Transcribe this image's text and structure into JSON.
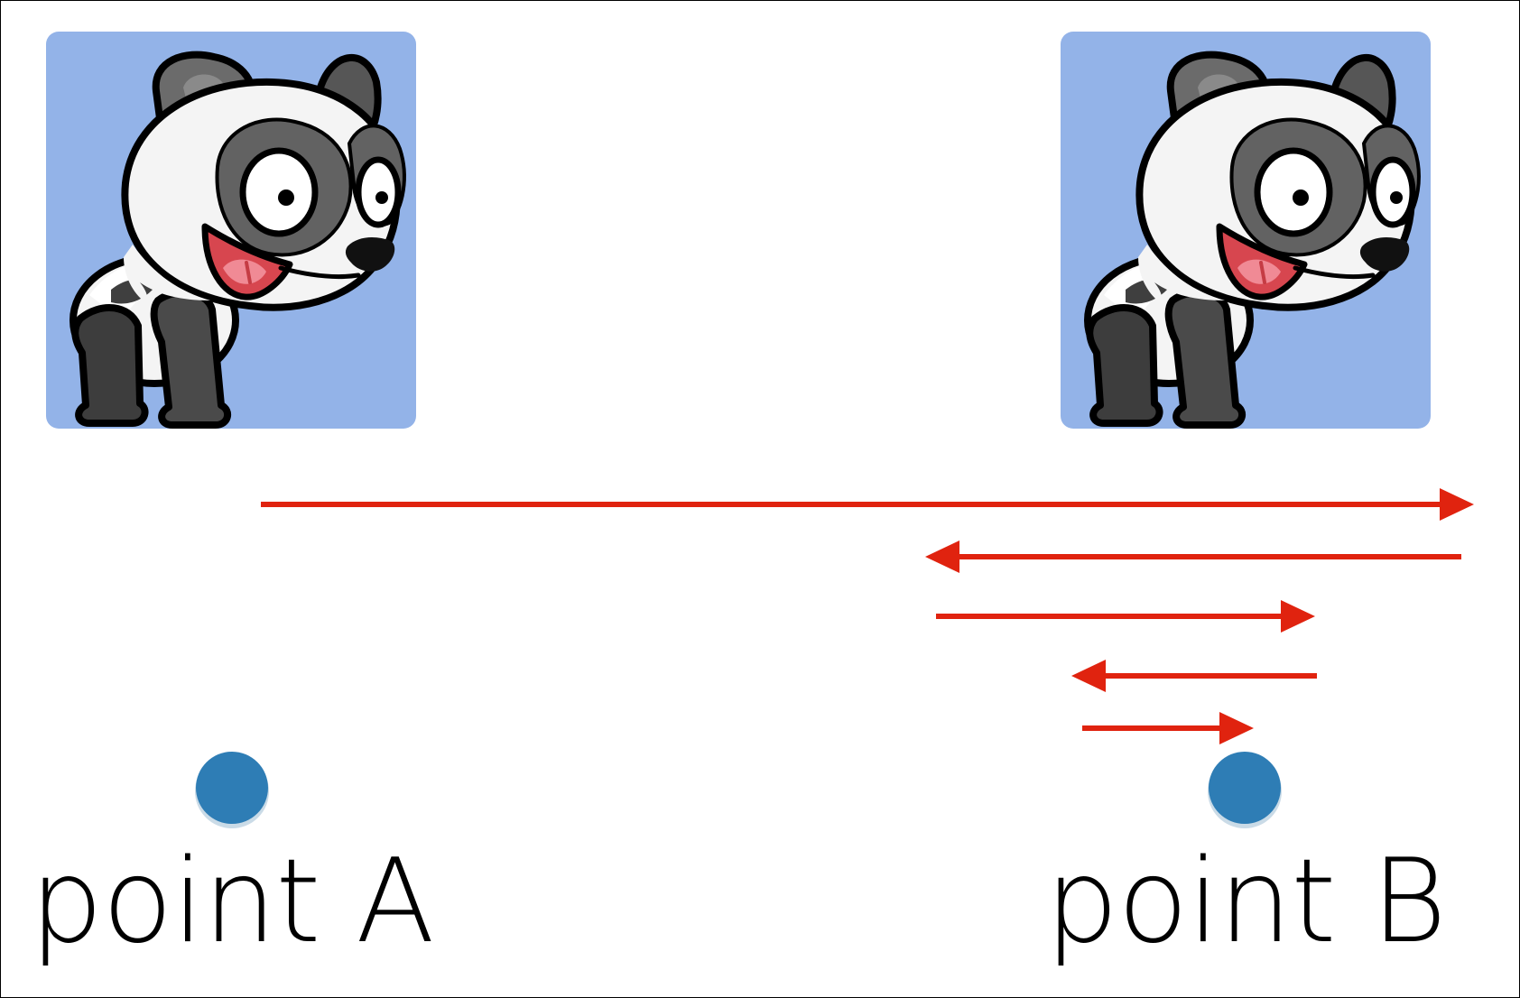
{
  "labels": {
    "point_a": "point A",
    "point_b": "point B"
  },
  "colors": {
    "panel_background": "#93b3e8",
    "arrow": "#e0230f",
    "point": "#2e7db5",
    "panda_black": "#4a4a4a",
    "panda_gray": "#5f5f5f",
    "panda_white": "#f4f4f4",
    "mouth": "#d7464f",
    "tongue": "#f08a95"
  },
  "icons": {
    "panda_left": "panda-icon",
    "panda_right": "panda-icon",
    "point_a": "point-marker",
    "point_b": "point-marker"
  }
}
